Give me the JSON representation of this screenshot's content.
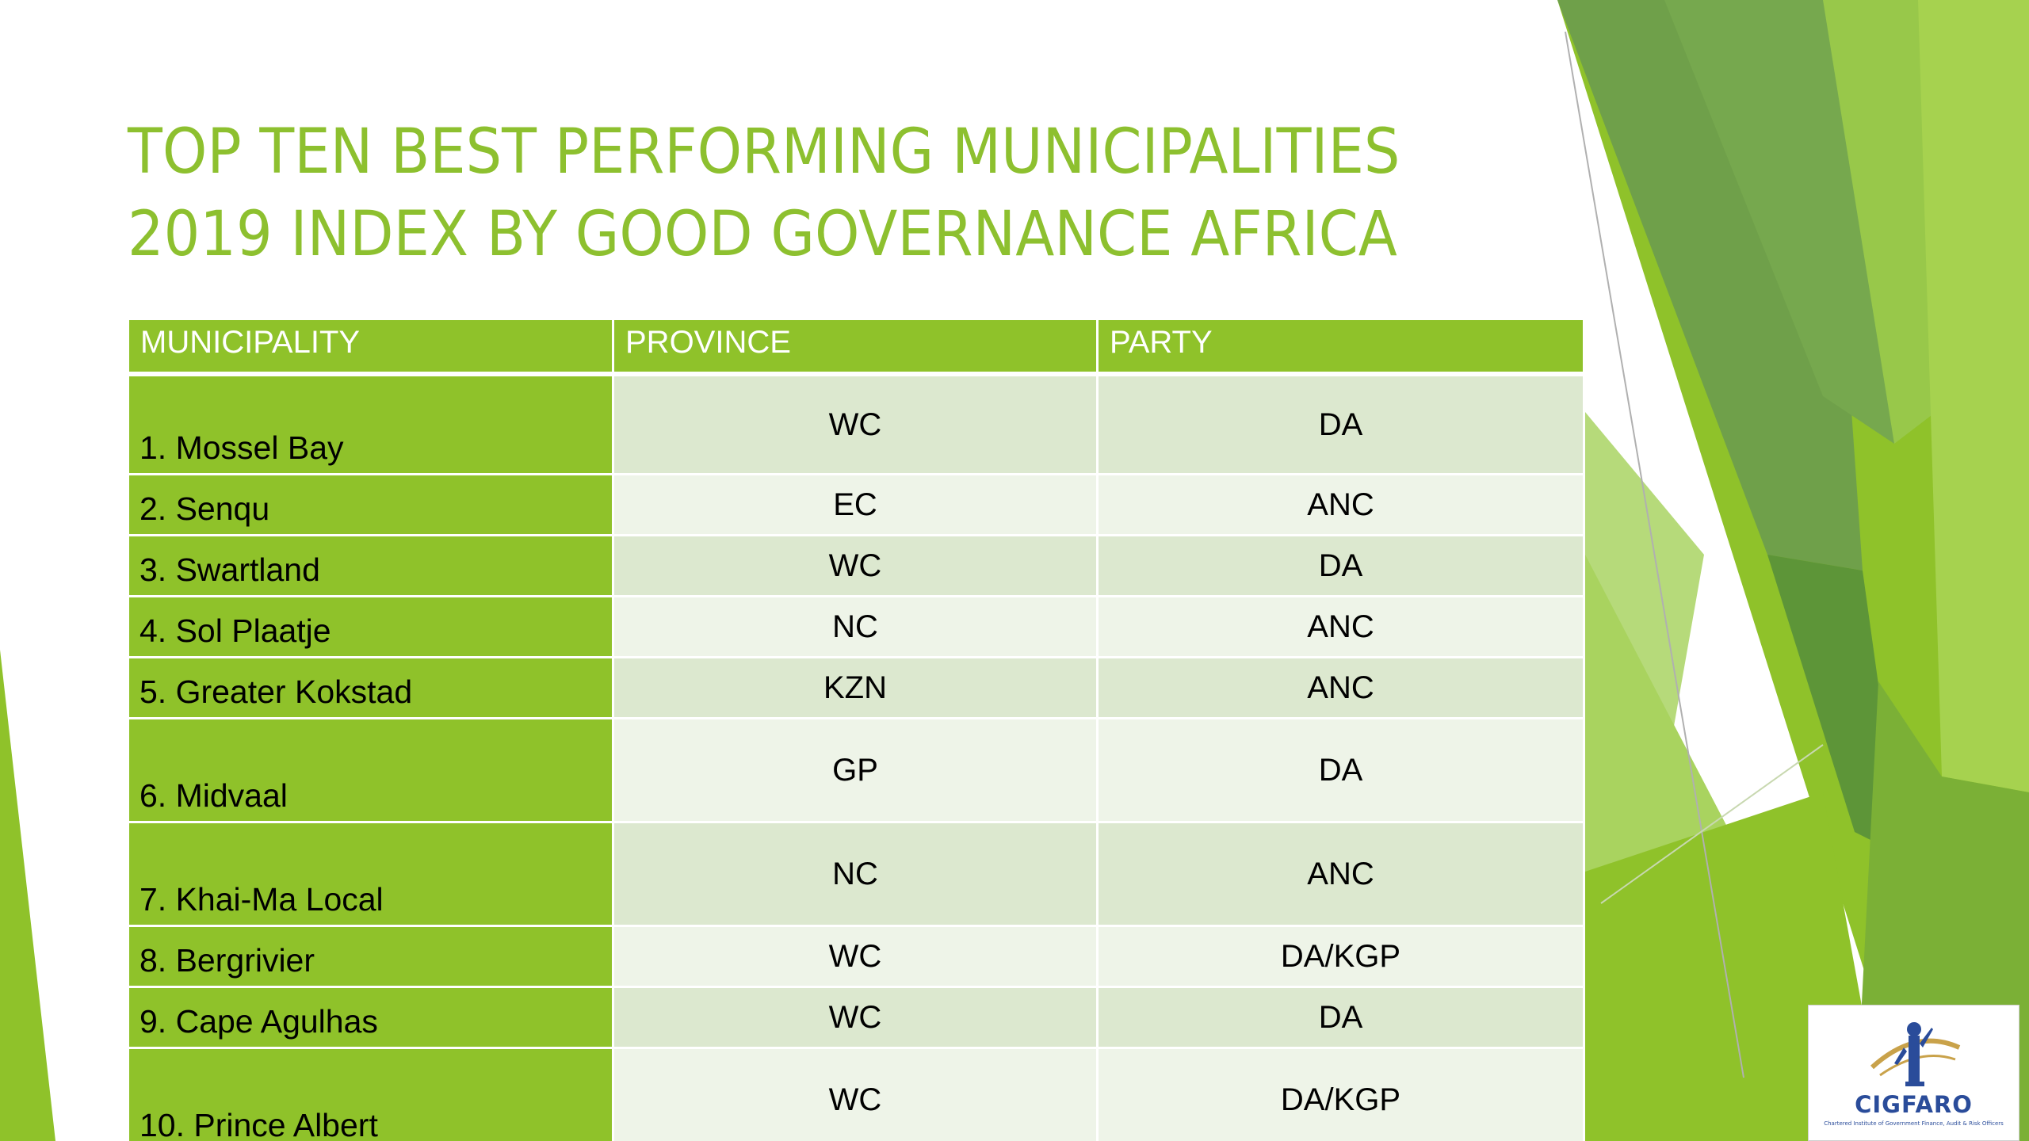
{
  "slide": {
    "title_line1": "TOP TEN BEST PERFORMING MUNICIPALITIES",
    "title_line2": "2019 INDEX BY GOOD GOVERNANCE AFRICA"
  },
  "table": {
    "headers": [
      "MUNICIPALITY",
      "PROVINCE",
      "PARTY"
    ],
    "rows": [
      {
        "municipality": "1. Mossel Bay",
        "province": "WC",
        "party": "DA"
      },
      {
        "municipality": "2. Senqu",
        "province": "EC",
        "party": "ANC"
      },
      {
        "municipality": "3. Swartland",
        "province": "WC",
        "party": "DA"
      },
      {
        "municipality": "4. Sol Plaatje",
        "province": "NC",
        "party": "ANC"
      },
      {
        "municipality": "5. Greater Kokstad",
        "province": "KZN",
        "party": "ANC"
      },
      {
        "municipality": "6. Midvaal",
        "province": "GP",
        "party": "DA"
      },
      {
        "municipality": "7. Khai-Ma Local",
        "province": "NC",
        "party": "ANC"
      },
      {
        "municipality": "8. Bergrivier",
        "province": "WC",
        "party": "DA/KGP"
      },
      {
        "municipality": "9. Cape Agulhas",
        "province": "WC",
        "party": "DA"
      },
      {
        "municipality": "10. Prince Albert",
        "province": "WC",
        "party": "DA/KGP"
      }
    ]
  },
  "logo": {
    "name": "CIGFARO",
    "tagline": "Chartered Institute of Government Finance, Audit & Risk Officers"
  },
  "colors": {
    "accent_green": "#8fc22a",
    "title_green": "#8dc02f",
    "row_odd": "#dce8cf",
    "row_even": "#eef4e8",
    "logo_blue": "#2a4c9a"
  }
}
